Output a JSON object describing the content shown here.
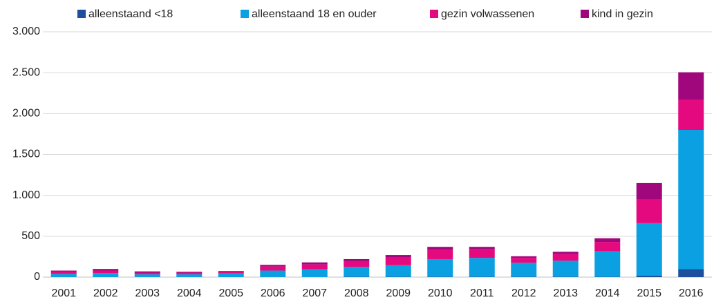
{
  "chart_data": {
    "type": "stacked_bar",
    "categories": [
      "2001",
      "2002",
      "2003",
      "2004",
      "2005",
      "2006",
      "2007",
      "2008",
      "2009",
      "2010",
      "2011",
      "2012",
      "2013",
      "2014",
      "2015",
      "2016"
    ],
    "series": [
      {
        "name": "alleenstaand <18",
        "color": "#1d4f9f",
        "values": [
          0,
          0,
          0,
          0,
          0,
          0,
          0,
          5,
          5,
          5,
          5,
          5,
          5,
          5,
          20,
          100
        ]
      },
      {
        "name": "alleenstaand 18 en ouder",
        "color": "#0aa0e2",
        "values": [
          40,
          50,
          35,
          35,
          45,
          80,
          95,
          120,
          140,
          215,
          230,
          170,
          195,
          310,
          640,
          1700
        ]
      },
      {
        "name": "gezin volwassenen",
        "color": "#e5097f",
        "values": [
          25,
          30,
          20,
          20,
          20,
          50,
          60,
          70,
          95,
          115,
          105,
          60,
          80,
          115,
          290,
          365
        ]
      },
      {
        "name": "kind in gezin",
        "color": "#a0077d",
        "values": [
          15,
          20,
          15,
          10,
          10,
          20,
          25,
          25,
          30,
          35,
          30,
          20,
          30,
          45,
          200,
          340
        ]
      }
    ],
    "ylim": [
      0,
      3000
    ],
    "yticks": [
      0,
      500,
      {
        "value": 1000,
        "label": "1.000"
      },
      {
        "value": 1500,
        "label": "1.500"
      },
      {
        "value": 2000,
        "label": "2.000"
      },
      {
        "value": 2500,
        "label": "2.500"
      },
      {
        "value": 3000,
        "label": "3.000"
      }
    ],
    "grid": true,
    "legend": "top"
  }
}
